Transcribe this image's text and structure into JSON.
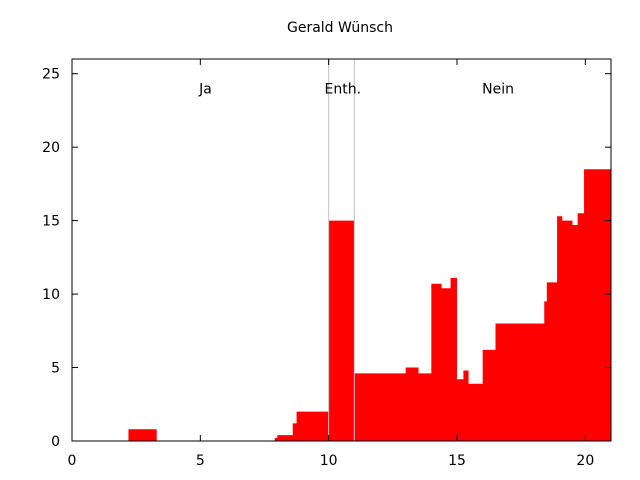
{
  "chart_data": {
    "type": "area",
    "title": "Gerald Wünsch",
    "xlabel": "",
    "ylabel": "",
    "xlim": [
      0,
      21
    ],
    "ylim": [
      0,
      26
    ],
    "xticks": [
      0,
      5,
      10,
      15,
      20
    ],
    "yticks": [
      0,
      5,
      10,
      15,
      20,
      25
    ],
    "grid": false,
    "fill_color": "#ff0000",
    "divider_color": "#c0c0c0",
    "dividers": [
      10,
      11
    ],
    "regions": [
      {
        "label": "Ja",
        "x": 5.2,
        "y": 24
      },
      {
        "label": "Enth.",
        "x": 10.55,
        "y": 24
      },
      {
        "label": "Nein",
        "x": 16.6,
        "y": 24
      }
    ],
    "series": [
      {
        "x": [
          0,
          2.2,
          2.2,
          3.3,
          3.3,
          7.9,
          7.9,
          8.0,
          8.0,
          8.6,
          8.6,
          8.75,
          8.75,
          10.0,
          10.0,
          11.0,
          11.0,
          13.0,
          13.0,
          13.5,
          13.5,
          14.0,
          14.0,
          14.4,
          14.4,
          14.75,
          14.75,
          15.0,
          15.0,
          15.25,
          15.25,
          15.45,
          15.45,
          16.0,
          16.0,
          16.5,
          16.5,
          18.4,
          18.4,
          18.5,
          18.5,
          18.9,
          18.9,
          19.1,
          19.1,
          19.5,
          19.5,
          19.7,
          19.7,
          19.95,
          19.95,
          20.0,
          20.0,
          21.0
        ],
        "y": [
          0,
          0,
          0.8,
          0.8,
          0,
          0,
          0.2,
          0.2,
          0.4,
          0.4,
          1.2,
          1.2,
          2.0,
          2.0,
          15.0,
          15.0,
          4.6,
          4.6,
          5.0,
          5.0,
          4.6,
          4.6,
          10.7,
          10.7,
          10.4,
          10.4,
          11.1,
          11.1,
          4.2,
          4.2,
          4.8,
          4.8,
          3.9,
          3.9,
          6.2,
          6.2,
          8.0,
          8.0,
          9.5,
          9.5,
          10.8,
          10.8,
          15.3,
          15.3,
          15.0,
          15.0,
          14.7,
          14.7,
          15.5,
          15.5,
          18.5,
          18.5,
          18.5,
          18.5
        ]
      }
    ]
  }
}
